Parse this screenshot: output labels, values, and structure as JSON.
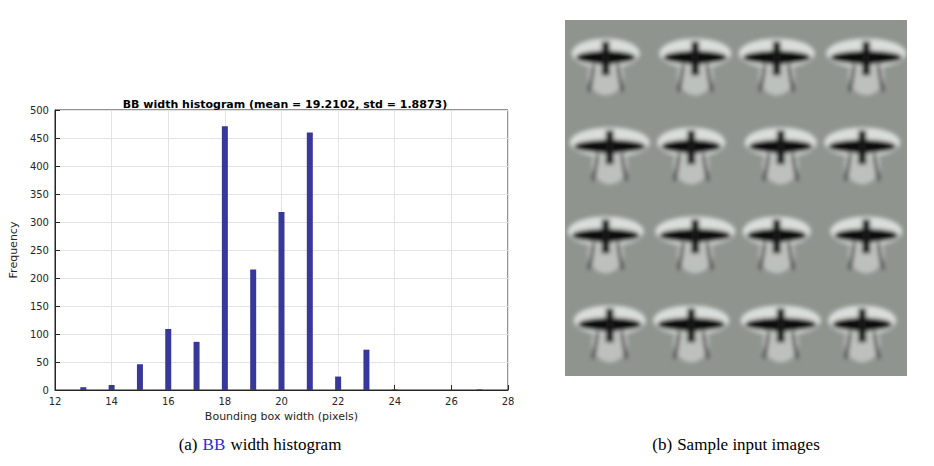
{
  "chart_data": {
    "type": "bar",
    "title": "BB width histogram (mean = 19.2102, std = 1.8873)",
    "xlabel": "Bounding box width (pixels)",
    "ylabel": "Frequency",
    "x": [
      13,
      14,
      15,
      16,
      17,
      18,
      19,
      20,
      21,
      22,
      23,
      24,
      25,
      26,
      27
    ],
    "values": [
      5,
      9,
      46,
      109,
      86,
      471,
      215,
      318,
      460,
      24,
      72,
      1,
      0,
      0,
      1
    ],
    "color": "#38389a",
    "xlim": [
      12,
      28
    ],
    "xticks": [
      12,
      14,
      16,
      18,
      20,
      22,
      24,
      26,
      28
    ],
    "ylim": [
      0,
      500
    ],
    "yticks": [
      0,
      50,
      100,
      150,
      200,
      250,
      300,
      350,
      400,
      450,
      500
    ],
    "grid": true
  },
  "figure": {
    "panels": [
      {
        "label": "(a)",
        "link": "BB",
        "caption": "width histogram"
      },
      {
        "label": "(b)",
        "caption": "Sample input images"
      }
    ]
  }
}
